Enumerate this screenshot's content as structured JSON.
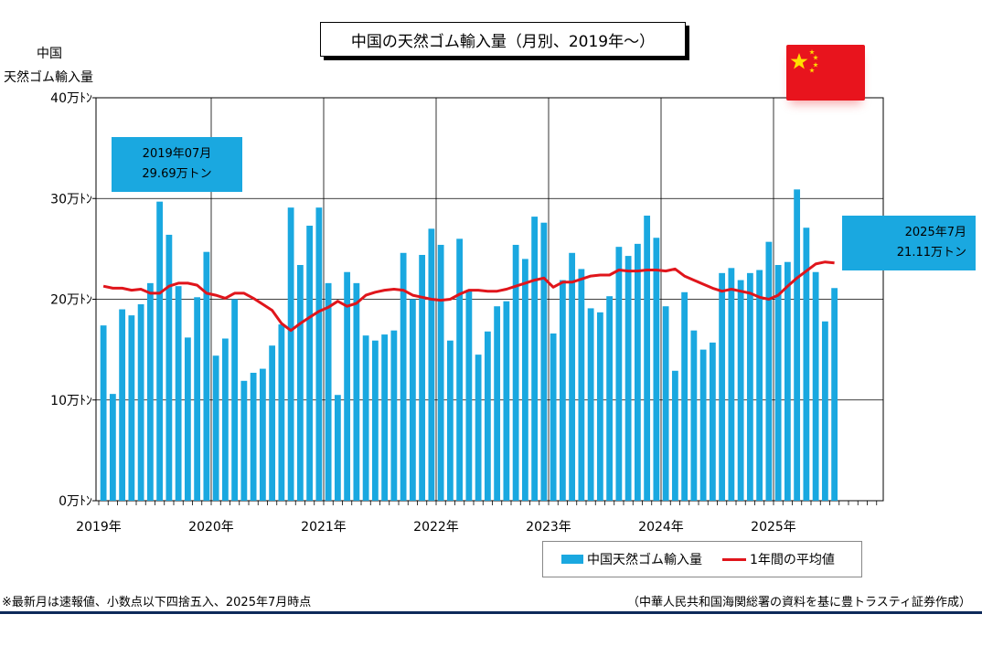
{
  "title": "中国の天然ゴム輸入量（月別、2019年～）",
  "yaxis_title": [
    "中国",
    "天然ゴム輸入量"
  ],
  "colors": {
    "bar": "#1aa8e0",
    "line": "#e0151b",
    "grid": "#000000",
    "flag": "#e8141d",
    "star": "#ffde00"
  },
  "flag": {
    "icon": "china-flag-icon"
  },
  "callouts": {
    "first": [
      "2019年07月",
      "29.69万トン"
    ],
    "last": [
      "2025年7月",
      "21.11万トン"
    ]
  },
  "legend": {
    "bar_label": "中国天然ゴム輸入量",
    "line_label": "1年間の平均値"
  },
  "notes": {
    "left": "※最新月は速報値、小数点以下四捨五入、2025年7月時点",
    "right": "（中華人民共和国海関総署の資料を基に豊トラスティ証券作成）"
  },
  "chart_data": {
    "type": "bar",
    "title": "中国の天然ゴム輸入量（月別、2019年～）",
    "ylabel": "中国 天然ゴム輸入量",
    "ylim": [
      0,
      40
    ],
    "yticks": [
      "0万ﾄﾝ",
      "10万ﾄﾝ",
      "20万ﾄﾝ",
      "30万ﾄﾝ",
      "40万ﾄﾝ"
    ],
    "xticks": [
      "2019年",
      "2020年",
      "2021年",
      "2022年",
      "2023年",
      "2024年",
      "2025年"
    ],
    "x_start": "2019-01",
    "x_end": "2025-07",
    "grid": true,
    "legend_position": "bottom-right",
    "series": [
      {
        "name": "中国天然ゴム輸入量",
        "type": "bar",
        "values": [
          17.4,
          10.6,
          19.0,
          18.4,
          19.5,
          21.6,
          29.69,
          26.4,
          21.3,
          16.2,
          20.2,
          24.7,
          14.4,
          16.1,
          20.0,
          11.9,
          12.7,
          13.1,
          15.4,
          17.5,
          29.1,
          23.4,
          27.3,
          29.1,
          21.6,
          10.5,
          22.7,
          21.6,
          16.4,
          15.9,
          16.5,
          16.9,
          24.6,
          20.0,
          24.4,
          27.0,
          25.4,
          15.9,
          26.0,
          20.9,
          14.5,
          16.8,
          19.3,
          19.8,
          25.4,
          24.0,
          28.2,
          27.6,
          16.6,
          21.9,
          24.6,
          23.0,
          19.1,
          18.7,
          20.3,
          25.2,
          24.3,
          25.5,
          28.3,
          26.1,
          19.3,
          12.9,
          20.7,
          16.9,
          15.0,
          15.7,
          22.6,
          23.1,
          21.9,
          22.6,
          22.9,
          25.7,
          23.4,
          23.7,
          30.9,
          27.1,
          22.7,
          17.8,
          21.11
        ]
      },
      {
        "name": "1年間の平均値",
        "type": "line",
        "values": [
          21.3,
          21.1,
          21.1,
          20.9,
          21.0,
          20.6,
          20.6,
          21.3,
          21.6,
          21.6,
          21.4,
          20.6,
          20.4,
          20.1,
          20.6,
          20.6,
          20.1,
          19.5,
          18.9,
          17.6,
          16.9,
          17.6,
          18.2,
          18.8,
          19.2,
          19.8,
          19.3,
          19.6,
          20.4,
          20.7,
          20.9,
          21.0,
          20.9,
          20.4,
          20.2,
          20.0,
          19.9,
          20.0,
          20.5,
          20.9,
          20.9,
          20.8,
          20.8,
          21.0,
          21.3,
          21.6,
          21.9,
          22.1,
          21.2,
          21.7,
          21.7,
          22.0,
          22.3,
          22.4,
          22.4,
          22.9,
          22.8,
          22.8,
          22.9,
          22.9,
          22.8,
          23.0,
          22.3,
          21.9,
          21.5,
          21.1,
          20.8,
          21.0,
          20.8,
          20.6,
          20.2,
          20.0,
          20.4,
          21.3,
          22.1,
          22.8,
          23.5,
          23.7,
          23.6
        ]
      }
    ]
  }
}
